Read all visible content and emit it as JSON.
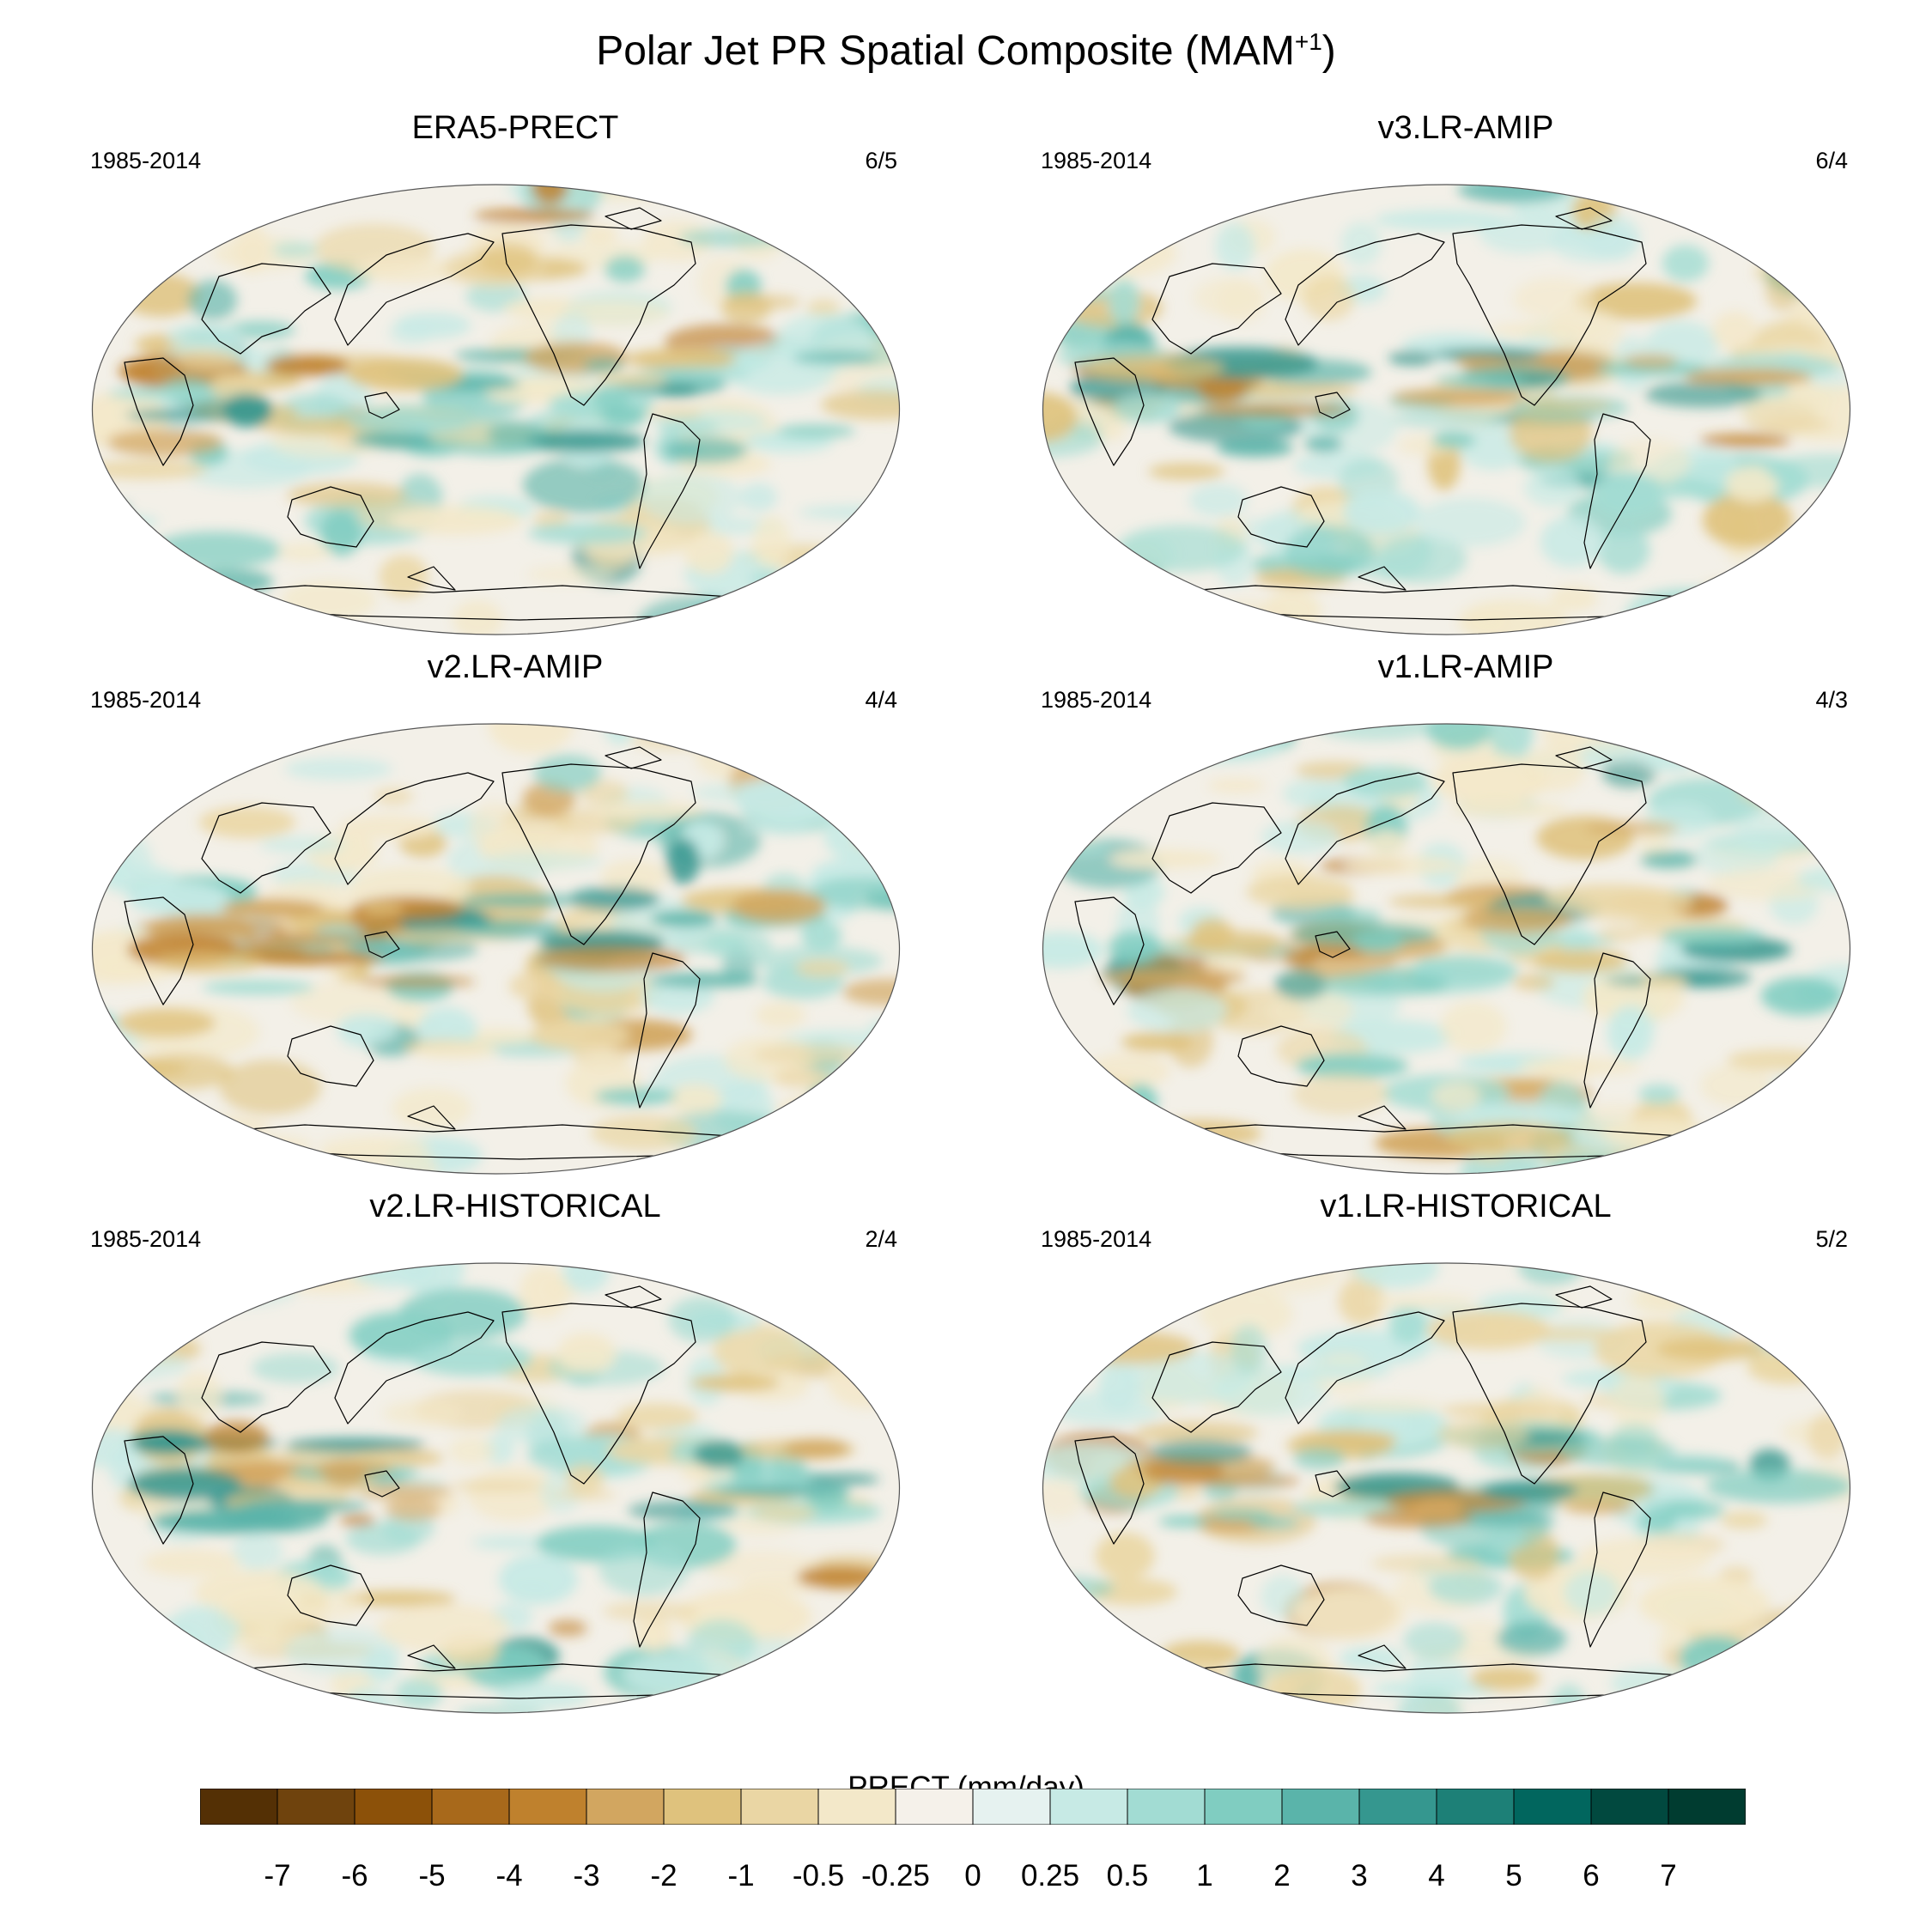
{
  "title": {
    "main": "Polar Jet PR Spatial Composite (MAM",
    "sup": "+1",
    "close": ")"
  },
  "panels": [
    {
      "name": "ERA5-PRECT",
      "period": "1985-2014",
      "ratio": "6/5"
    },
    {
      "name": "v3.LR-AMIP",
      "period": "1985-2014",
      "ratio": "6/4"
    },
    {
      "name": "v2.LR-AMIP",
      "period": "1985-2014",
      "ratio": "4/4"
    },
    {
      "name": "v1.LR-AMIP",
      "period": "1985-2014",
      "ratio": "4/3"
    },
    {
      "name": "v2.LR-HISTORICAL",
      "period": "1985-2014",
      "ratio": "2/4"
    },
    {
      "name": "v1.LR-HISTORICAL",
      "period": "1985-2014",
      "ratio": "5/2"
    }
  ],
  "colorbar": {
    "title": "PRECT (mm/day)",
    "labels": [
      "-7",
      "-6",
      "-5",
      "-4",
      "-3",
      "-2",
      "-1",
      "-0.5",
      "-0.25",
      "0",
      "0.25",
      "0.5",
      "1",
      "2",
      "3",
      "4",
      "5",
      "6",
      "7"
    ],
    "colors": [
      "#543005",
      "#6f430d",
      "#8c5109",
      "#a8691b",
      "#bf812d",
      "#d2a660",
      "#dfc27d",
      "#ead6a4",
      "#f3e8c9",
      "#f5f1ea",
      "#e6f2f0",
      "#c7eae5",
      "#a2dcd3",
      "#80cdc1",
      "#5ab4aa",
      "#35978f",
      "#1d8077",
      "#01665e",
      "#01493f",
      "#003c30"
    ]
  },
  "map_colors": {
    "ocean_base": "#f3f0e8",
    "wet": "#5ab4aa",
    "dry": "#c8954a",
    "coast": "#000000"
  }
}
